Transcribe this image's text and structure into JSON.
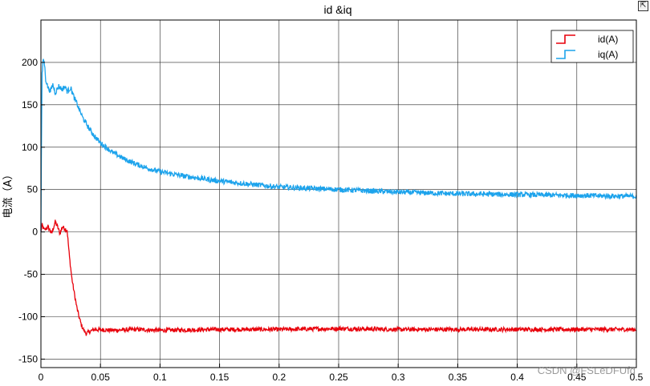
{
  "corner_button_icon": "restore-icon",
  "watermark": "CSDN @FSLeDFUfq",
  "chart_data": {
    "type": "line",
    "title": "id &iq",
    "xlabel": "",
    "ylabel": "电流（A）",
    "xlim": [
      0,
      0.5
    ],
    "ylim": [
      -160,
      250
    ],
    "xticks": [
      0,
      0.05,
      0.1,
      0.15,
      0.2,
      0.25,
      0.3,
      0.35,
      0.4,
      0.45,
      0.5
    ],
    "xtick_labels": [
      "0",
      "0.05",
      "0.1",
      "0.15",
      "0.2",
      "0.25",
      "0.3",
      "0.35",
      "0.4",
      "0.45",
      "0.5"
    ],
    "yticks": [
      -150,
      -100,
      -50,
      0,
      50,
      100,
      150,
      200
    ],
    "ytick_labels": [
      "-150",
      "-100",
      "-50",
      "0",
      "50",
      "100",
      "150",
      "200"
    ],
    "grid": true,
    "legend_position": "top-right",
    "series": [
      {
        "name": "id(A)",
        "color": "#e8000b",
        "noise": 2.5,
        "x": [
          0,
          0.001,
          0.003,
          0.006,
          0.009,
          0.012,
          0.014,
          0.016,
          0.018,
          0.02,
          0.022,
          0.024,
          0.026,
          0.028,
          0.03,
          0.032,
          0.034,
          0.036,
          0.038,
          0.04,
          0.045,
          0.06,
          0.08,
          0.1,
          0.15,
          0.2,
          0.25,
          0.3,
          0.35,
          0.4,
          0.45,
          0.5
        ],
        "y": [
          0,
          8,
          2,
          6,
          -2,
          12,
          6,
          -2,
          6,
          4,
          2,
          -30,
          -55,
          -72,
          -88,
          -100,
          -110,
          -116,
          -120,
          -118,
          -115,
          -116,
          -115,
          -116,
          -115,
          -115,
          -114,
          -115,
          -115,
          -115,
          -115,
          -115
        ]
      },
      {
        "name": "iq(A)",
        "color": "#1ca3ec",
        "noise": 3.0,
        "x": [
          0,
          0.0005,
          0.001,
          0.002,
          0.003,
          0.004,
          0.006,
          0.008,
          0.01,
          0.012,
          0.015,
          0.018,
          0.02,
          0.022,
          0.025,
          0.028,
          0.03,
          0.035,
          0.04,
          0.045,
          0.05,
          0.06,
          0.07,
          0.08,
          0.09,
          0.1,
          0.12,
          0.15,
          0.2,
          0.25,
          0.3,
          0.35,
          0.4,
          0.45,
          0.5
        ],
        "y": [
          0,
          120,
          185,
          205,
          198,
          180,
          170,
          166,
          174,
          164,
          172,
          168,
          172,
          166,
          170,
          158,
          152,
          135,
          123,
          113,
          105,
          94,
          86,
          80,
          75,
          71,
          66,
          60,
          53,
          50,
          47,
          45,
          44,
          43,
          42
        ]
      }
    ]
  }
}
